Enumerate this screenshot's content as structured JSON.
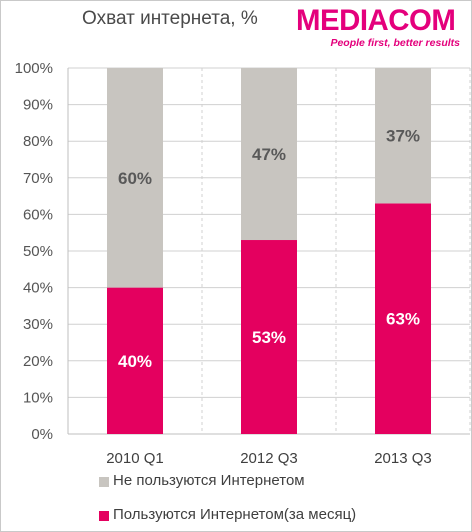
{
  "title": "Охват интернета, %",
  "logo": {
    "wordmark": "MEDIACOM",
    "tagline": "People first, better results",
    "color": "#e4007c"
  },
  "colors": {
    "users": "#e4005f",
    "non_users": "#c8c5c0",
    "users_label": "#ffffff",
    "non_users_label": "#595959",
    "grid": "#d0d0d0"
  },
  "chart_data": {
    "type": "bar",
    "stacked": true,
    "categories": [
      "2010 Q1",
      "2012 Q3",
      "2013 Q3"
    ],
    "series": [
      {
        "name": "Пользуются Интернетом(за месяц)",
        "values": [
          40,
          53,
          63
        ],
        "labels": [
          "40%",
          "53%",
          "63%"
        ]
      },
      {
        "name": "Не пользуются Интернетом",
        "values": [
          60,
          47,
          37
        ],
        "labels": [
          "60%",
          "47%",
          "37%"
        ]
      }
    ],
    "yticks": [
      "0%",
      "10%",
      "20%",
      "30%",
      "40%",
      "50%",
      "60%",
      "70%",
      "80%",
      "90%",
      "100%"
    ],
    "ylim": [
      0,
      100
    ],
    "grid": true,
    "legend_position": "bottom"
  },
  "legend": [
    {
      "label": "Не пользуются Интернетом",
      "series": 1
    },
    {
      "label": "Пользуются Интернетом(за месяц)",
      "series": 0
    }
  ]
}
